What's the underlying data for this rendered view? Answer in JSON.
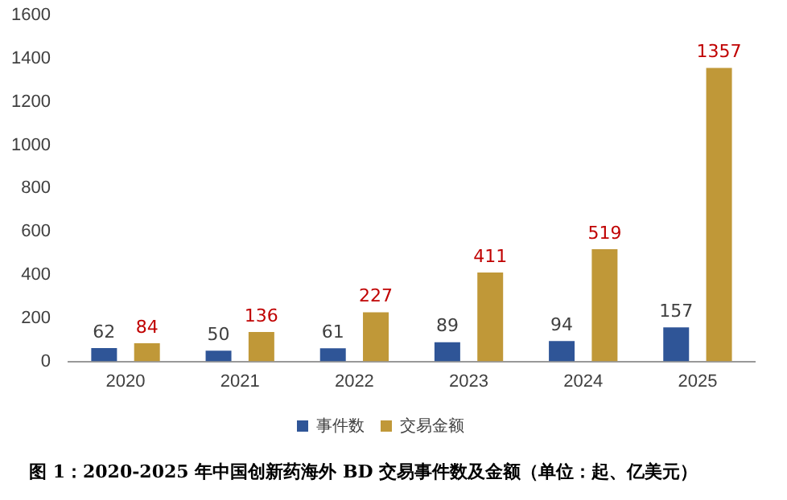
{
  "chart_data": {
    "type": "bar",
    "categories": [
      "2020",
      "2021",
      "2022",
      "2023",
      "2024",
      "2025"
    ],
    "series": [
      {
        "name": "事件数",
        "color": "#2f5597",
        "values": [
          62,
          50,
          61,
          89,
          94,
          157
        ]
      },
      {
        "name": "交易金额",
        "color": "#c09838",
        "values": [
          84,
          136,
          227,
          411,
          519,
          1357
        ]
      }
    ],
    "ylim": [
      0,
      1600
    ],
    "yticks": [
      0,
      200,
      400,
      600,
      800,
      1000,
      1200,
      1400,
      1600
    ],
    "data_labels": true,
    "legend": "bottom",
    "annotations": [
      "图 1：2020-2025 年中国创新药海外 BD 交易事件数及金额（单位：起、亿美元）"
    ]
  }
}
